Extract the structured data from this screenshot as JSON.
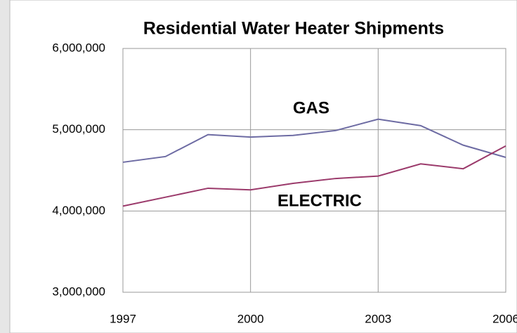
{
  "chart_data": {
    "type": "line",
    "title": "Residential Water Heater Shipments",
    "x": [
      1997,
      1998,
      1999,
      2000,
      2001,
      2002,
      2003,
      2004,
      2005,
      2006
    ],
    "xlim": [
      1997,
      2006
    ],
    "xticks": [
      1997,
      2000,
      2003,
      2006
    ],
    "ylim": [
      3000000,
      6000000
    ],
    "yticks": [
      {
        "value": 3000000,
        "label": "3,000,000"
      },
      {
        "value": 4000000,
        "label": "4,000,000"
      },
      {
        "value": 5000000,
        "label": "5,000,000"
      },
      {
        "value": 6000000,
        "label": "6,000,000"
      }
    ],
    "grid": true,
    "series": [
      {
        "name": "GAS",
        "color": "#6d6ba3",
        "values": [
          4600000,
          4670000,
          4940000,
          4910000,
          4930000,
          4990000,
          5130000,
          5050000,
          4810000,
          4660000
        ]
      },
      {
        "name": "ELECTRIC",
        "color": "#9b3a6b",
        "values": [
          4060000,
          4170000,
          4280000,
          4260000,
          4340000,
          4400000,
          4430000,
          4580000,
          4520000,
          4800000
        ]
      }
    ]
  }
}
